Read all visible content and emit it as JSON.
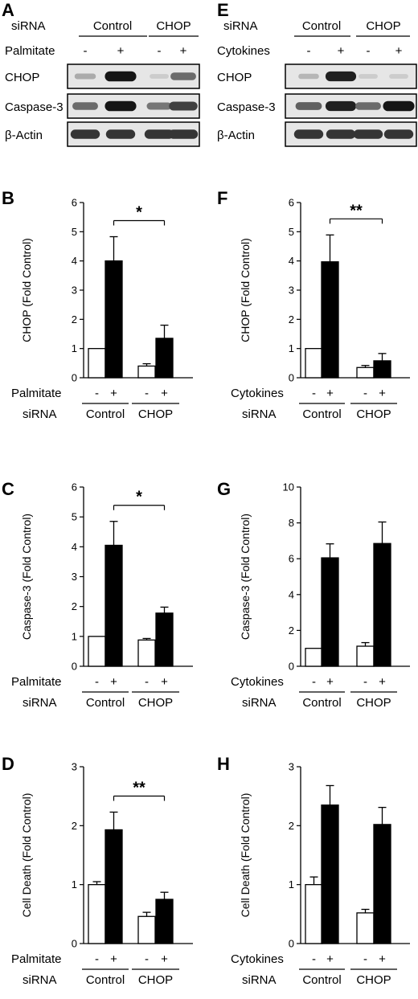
{
  "blots": [
    {
      "panel": "A",
      "sirna_label": "siRNA",
      "groups": [
        "Control",
        "CHOP"
      ],
      "treatment_label": "Palmitate",
      "signs": [
        "-",
        "+",
        "-",
        "+"
      ],
      "rows": [
        {
          "label": "CHOP",
          "intensity": [
            0.25,
            0.95,
            0.1,
            0.55
          ]
        },
        {
          "label": "Caspase-3",
          "intensity": [
            0.55,
            0.95,
            0.5,
            0.75
          ]
        },
        {
          "label": "β-Actin",
          "intensity": [
            0.8,
            0.8,
            0.8,
            0.8
          ]
        }
      ]
    },
    {
      "panel": "E",
      "sirna_label": "siRNA",
      "groups": [
        "Control",
        "CHOP"
      ],
      "treatment_label": "Cytokines",
      "signs": [
        "-",
        "+",
        "-",
        "+"
      ],
      "rows": [
        {
          "label": "CHOP",
          "intensity": [
            0.2,
            0.9,
            0.1,
            0.1
          ]
        },
        {
          "label": "Caspase-3",
          "intensity": [
            0.6,
            0.9,
            0.55,
            0.95
          ]
        },
        {
          "label": "β-Actin",
          "intensity": [
            0.8,
            0.8,
            0.8,
            0.8
          ]
        }
      ]
    }
  ],
  "chart_data": [
    {
      "panel": "B",
      "type": "bar",
      "ylabel": "CHOP (Fold Control)",
      "ylim": [
        0,
        6
      ],
      "yticks": [
        0,
        1,
        2,
        3,
        4,
        5,
        6
      ],
      "treatment_label": "Palmitate",
      "sirna_label": "siRNA",
      "groups": [
        "Control",
        "CHOP"
      ],
      "signs": [
        "-",
        "+",
        "-",
        "+"
      ],
      "values": [
        1.0,
        4.0,
        0.4,
        1.35
      ],
      "errors": [
        0,
        0.83,
        0.08,
        0.45
      ],
      "fills": [
        "white",
        "black",
        "white",
        "black"
      ],
      "significance": "*"
    },
    {
      "panel": "C",
      "type": "bar",
      "ylabel": "Caspase-3 (Fold Control)",
      "ylim": [
        0,
        6
      ],
      "yticks": [
        0,
        1,
        2,
        3,
        4,
        5,
        6
      ],
      "treatment_label": "Palmitate",
      "sirna_label": "siRNA",
      "groups": [
        "Control",
        "CHOP"
      ],
      "signs": [
        "-",
        "+",
        "-",
        "+"
      ],
      "values": [
        1.0,
        4.05,
        0.88,
        1.78
      ],
      "errors": [
        0,
        0.8,
        0.05,
        0.2
      ],
      "fills": [
        "white",
        "black",
        "white",
        "black"
      ],
      "significance": "*"
    },
    {
      "panel": "D",
      "type": "bar",
      "ylabel": "Cell Death (Fold Control)",
      "ylim": [
        0,
        3
      ],
      "yticks": [
        0,
        1,
        2,
        3
      ],
      "treatment_label": "Palmitate",
      "sirna_label": "siRNA",
      "groups": [
        "Control",
        "CHOP"
      ],
      "signs": [
        "-",
        "+",
        "-",
        "+"
      ],
      "values": [
        1.0,
        1.93,
        0.46,
        0.75
      ],
      "errors": [
        0.05,
        0.3,
        0.07,
        0.12
      ],
      "fills": [
        "white",
        "black",
        "white",
        "black"
      ],
      "significance": "**"
    },
    {
      "panel": "F",
      "type": "bar",
      "ylabel": "CHOP (Fold Control)",
      "ylim": [
        0,
        6
      ],
      "yticks": [
        0,
        1,
        2,
        3,
        4,
        5,
        6
      ],
      "treatment_label": "Cytokines",
      "sirna_label": "siRNA",
      "groups": [
        "Control",
        "CHOP"
      ],
      "signs": [
        "-",
        "+",
        "-",
        "+"
      ],
      "values": [
        1.0,
        3.97,
        0.35,
        0.58
      ],
      "errors": [
        0,
        0.92,
        0.07,
        0.25
      ],
      "fills": [
        "white",
        "black",
        "white",
        "black"
      ],
      "significance": "**"
    },
    {
      "panel": "G",
      "type": "bar",
      "ylabel": "Caspase-3 (Fold Control)",
      "ylim": [
        0,
        10
      ],
      "yticks": [
        0,
        2,
        4,
        6,
        8,
        10
      ],
      "treatment_label": "Cytokines",
      "sirna_label": "siRNA",
      "groups": [
        "Control",
        "CHOP"
      ],
      "signs": [
        "-",
        "+",
        "-",
        "+"
      ],
      "values": [
        1.0,
        6.05,
        1.12,
        6.85
      ],
      "errors": [
        0,
        0.78,
        0.2,
        1.2
      ],
      "fills": [
        "white",
        "black",
        "white",
        "black"
      ],
      "significance": ""
    },
    {
      "panel": "H",
      "type": "bar",
      "ylabel": "Cell Death (Fold Control)",
      "ylim": [
        0,
        3
      ],
      "yticks": [
        0,
        1,
        2,
        3
      ],
      "treatment_label": "Cytokines",
      "sirna_label": "siRNA",
      "groups": [
        "Control",
        "CHOP"
      ],
      "signs": [
        "-",
        "+",
        "-",
        "+"
      ],
      "values": [
        1.0,
        2.35,
        0.52,
        2.02
      ],
      "errors": [
        0.13,
        0.33,
        0.06,
        0.29
      ],
      "fills": [
        "white",
        "black",
        "white",
        "black"
      ],
      "significance": ""
    }
  ]
}
